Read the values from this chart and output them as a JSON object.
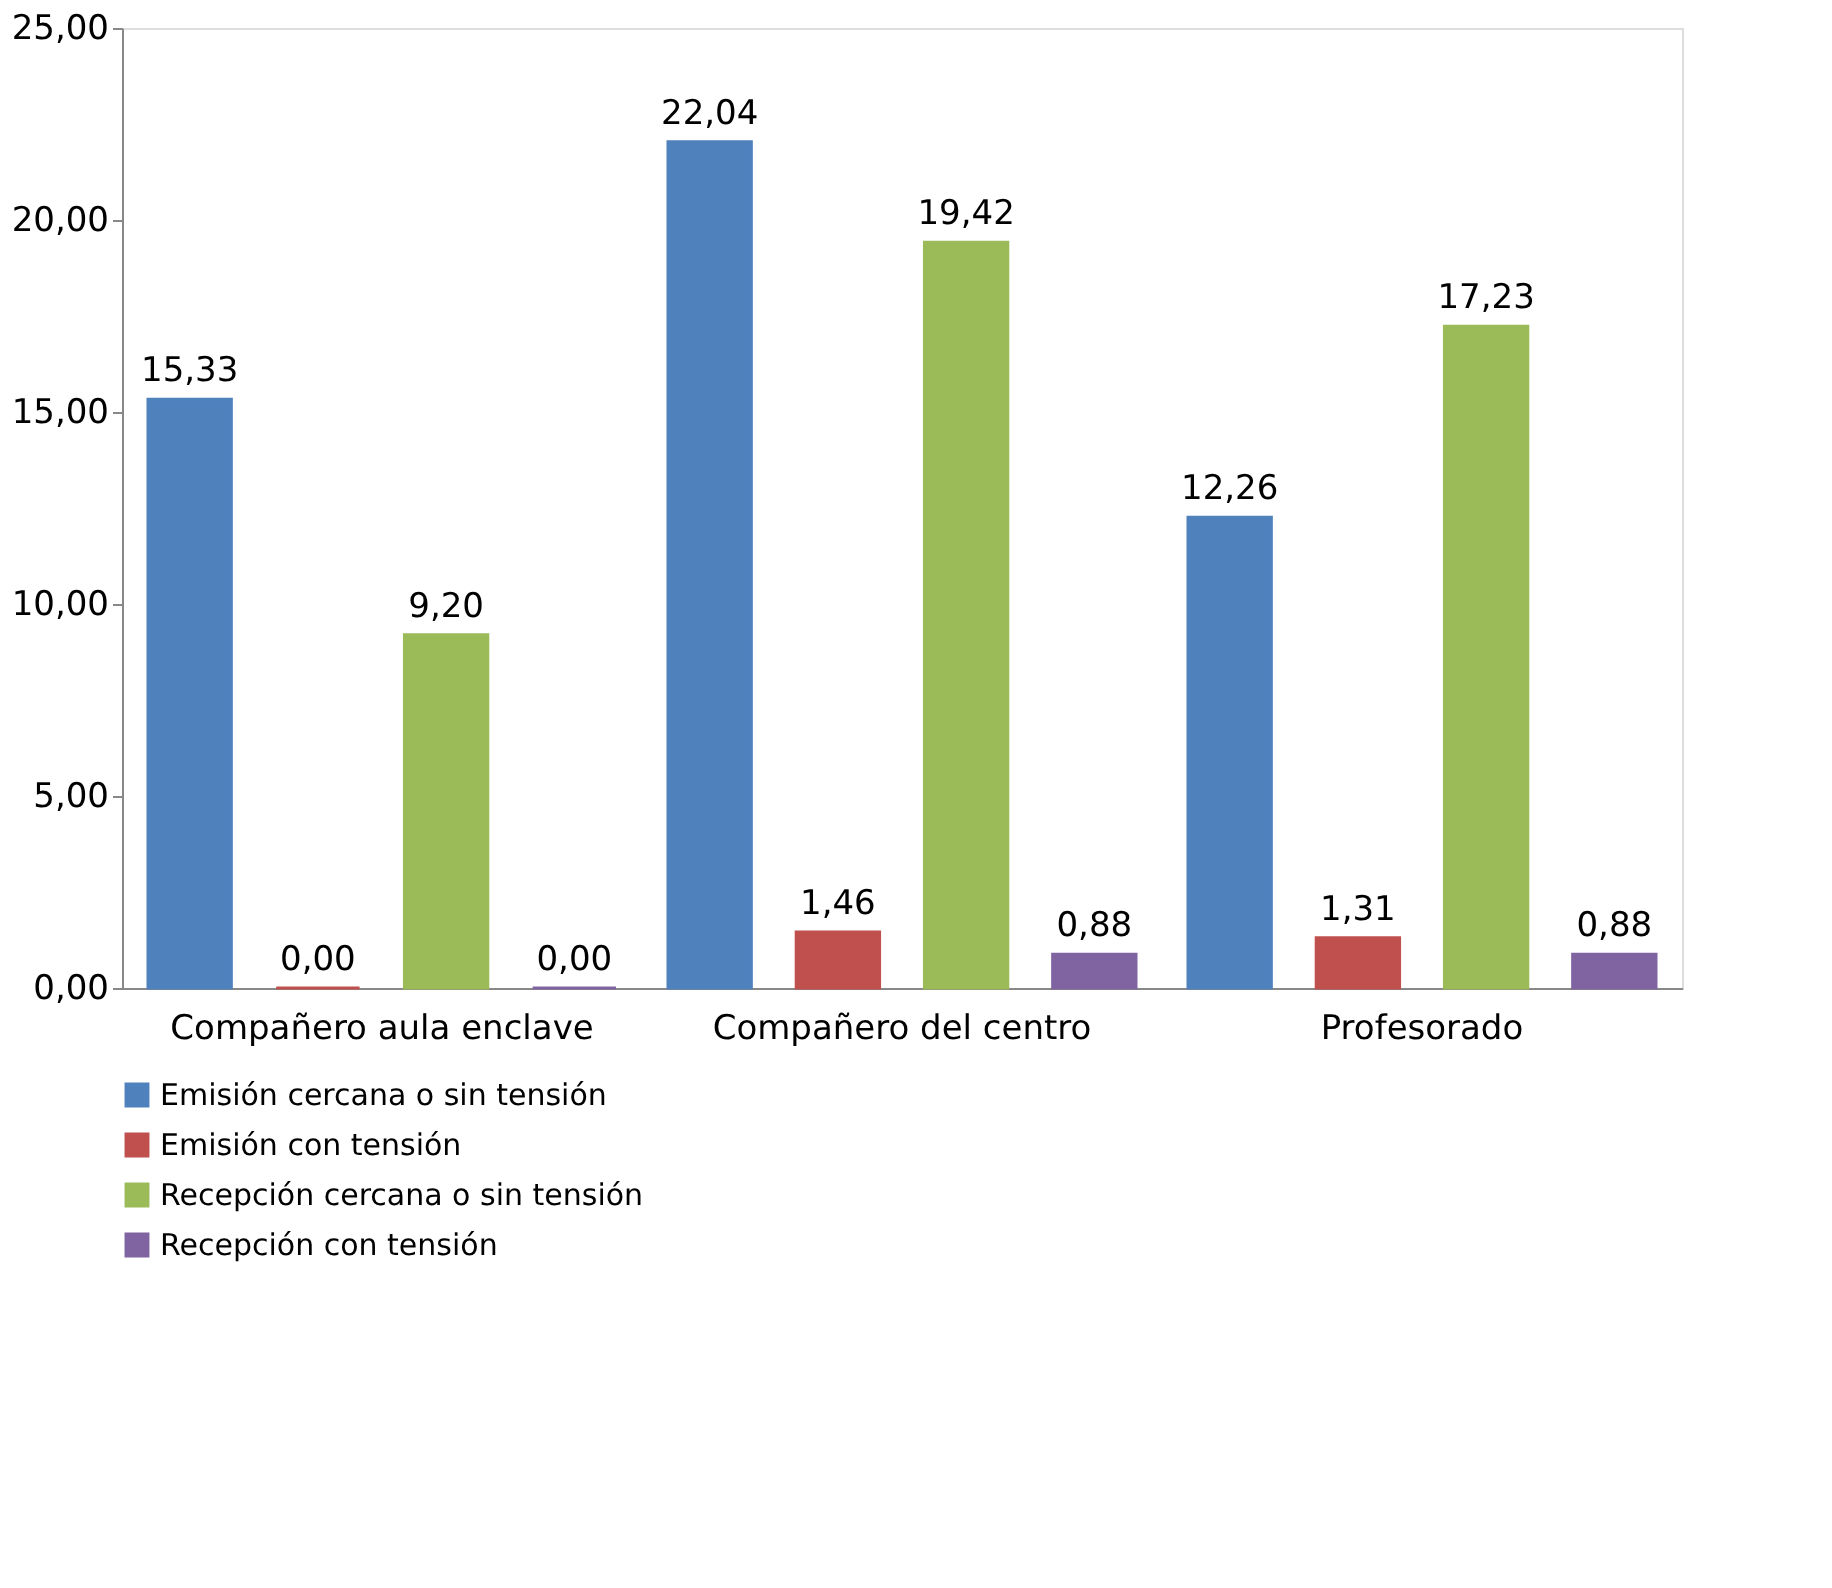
{
  "chart_data": {
    "type": "bar",
    "categories": [
      "Compañero aula enclave",
      "Compañero del centro",
      "Profesorado"
    ],
    "series": [
      {
        "name": "Emisión cercana o sin tensión",
        "color": "#4f81bd",
        "values": [
          15.33,
          22.04,
          12.26
        ],
        "value_labels": [
          "15,33",
          "22,04",
          "12,26"
        ]
      },
      {
        "name": "Emisión con tensión",
        "color": "#c0504d",
        "values": [
          0.0,
          1.46,
          1.31
        ],
        "value_labels": [
          "0,00",
          "1,46",
          "1,31"
        ]
      },
      {
        "name": "Recepción cercana  o sin tensión",
        "color": "#9bbb59",
        "values": [
          9.2,
          19.42,
          17.23
        ],
        "value_labels": [
          "9,20",
          "19,42",
          "17,23"
        ]
      },
      {
        "name": "Recepción con tensión",
        "color": "#8064a2",
        "values": [
          0.0,
          0.88,
          0.88
        ],
        "value_labels": [
          "0,00",
          "0,88",
          "0,88"
        ]
      }
    ],
    "ylim": [
      0,
      25
    ],
    "yticks": [
      {
        "value": 0,
        "label": "0,00"
      },
      {
        "value": 5,
        "label": "5,00"
      },
      {
        "value": 10,
        "label": "10,00"
      },
      {
        "value": 15,
        "label": "15,00"
      },
      {
        "value": 20,
        "label": "20,00"
      },
      {
        "value": 25,
        "label": "25,00"
      }
    ],
    "grid": false,
    "legend": "bottom"
  }
}
